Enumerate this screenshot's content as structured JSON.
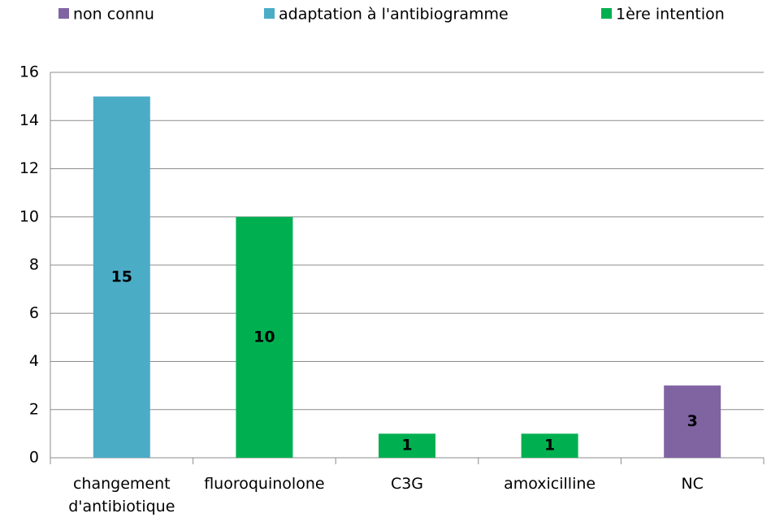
{
  "chart_data": {
    "type": "bar",
    "categories": [
      "changement d'antibiotique",
      "fluoroquinolone",
      "C3G",
      "amoxicilline",
      "NC"
    ],
    "series": [
      {
        "name": "non connu",
        "color": "#8064a2",
        "values": [
          0,
          0,
          0,
          0,
          3
        ]
      },
      {
        "name": "adaptation à l'antibiogramme",
        "color": "#4bacc6",
        "values": [
          15,
          0,
          0,
          0,
          0
        ]
      },
      {
        "name": "1ère intention",
        "color": "#00b050",
        "values": [
          0,
          10,
          1,
          1,
          0
        ]
      }
    ],
    "ylim": [
      0,
      16
    ],
    "yticks": [
      0,
      2,
      4,
      6,
      8,
      10,
      12,
      14,
      16
    ],
    "grid": true,
    "legend": "top",
    "stacked": true
  }
}
